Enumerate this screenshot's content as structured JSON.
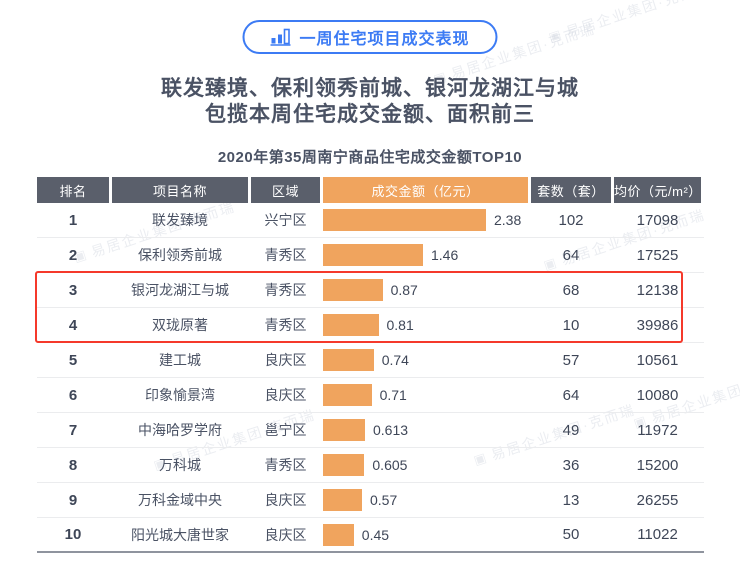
{
  "badge": {
    "label": "一周住宅项目成交表现"
  },
  "title": {
    "line1": "联发臻境、保利领秀前城、银河龙湖江与城",
    "line2": "包揽本周住宅成交金额、面积前三"
  },
  "subtitle": "2020年第35周南宁商品住宅成交金额TOP10",
  "watermark": "易居企业集团·克而瑞",
  "colors": {
    "blue": "#3c7bf4",
    "dark": "#5a5f6b",
    "orange": "#f0a45e",
    "red": "#f5392b",
    "text-dark": "#3e4657",
    "text-mid": "#4a5264"
  },
  "chart_data": {
    "type": "bar",
    "title": "2020年第35周南宁商品住宅成交金额TOP10",
    "orientation": "horizontal",
    "bar_column": "成交金额（亿元）",
    "bar_color": "#f0a45e",
    "xlim": [
      0,
      3
    ],
    "highlighted_ranks": [
      3,
      4
    ],
    "columns": [
      "排名",
      "项目名称",
      "区域",
      "成交金额（亿元）",
      "套数（套）",
      "均价（元/m²）"
    ],
    "rows": [
      {
        "rank": "1",
        "name": "联发臻境",
        "district": "兴宁区",
        "amount": 2.38,
        "amount_label": "2.38",
        "units": "102",
        "avg_price": "17098"
      },
      {
        "rank": "2",
        "name": "保利领秀前城",
        "district": "青秀区",
        "amount": 1.46,
        "amount_label": "1.46",
        "units": "64",
        "avg_price": "17525"
      },
      {
        "rank": "3",
        "name": "银河龙湖江与城",
        "district": "青秀区",
        "amount": 0.87,
        "amount_label": "0.87",
        "units": "68",
        "avg_price": "12138"
      },
      {
        "rank": "4",
        "name": "双珑原著",
        "district": "青秀区",
        "amount": 0.81,
        "amount_label": "0.81",
        "units": "10",
        "avg_price": "39986"
      },
      {
        "rank": "5",
        "name": "建工城",
        "district": "良庆区",
        "amount": 0.74,
        "amount_label": "0.74",
        "units": "57",
        "avg_price": "10561"
      },
      {
        "rank": "6",
        "name": "印象愉景湾",
        "district": "良庆区",
        "amount": 0.71,
        "amount_label": "0.71",
        "units": "64",
        "avg_price": "10080"
      },
      {
        "rank": "7",
        "name": "中海哈罗学府",
        "district": "邕宁区",
        "amount": 0.613,
        "amount_label": "0.613",
        "units": "49",
        "avg_price": "11972"
      },
      {
        "rank": "8",
        "name": "万科城",
        "district": "青秀区",
        "amount": 0.605,
        "amount_label": "0.605",
        "units": "36",
        "avg_price": "15200"
      },
      {
        "rank": "9",
        "name": "万科金域中央",
        "district": "良庆区",
        "amount": 0.57,
        "amount_label": "0.57",
        "units": "13",
        "avg_price": "26255"
      },
      {
        "rank": "10",
        "name": "阳光城大唐世家",
        "district": "良庆区",
        "amount": 0.45,
        "amount_label": "0.45",
        "units": "50",
        "avg_price": "11022"
      }
    ]
  }
}
